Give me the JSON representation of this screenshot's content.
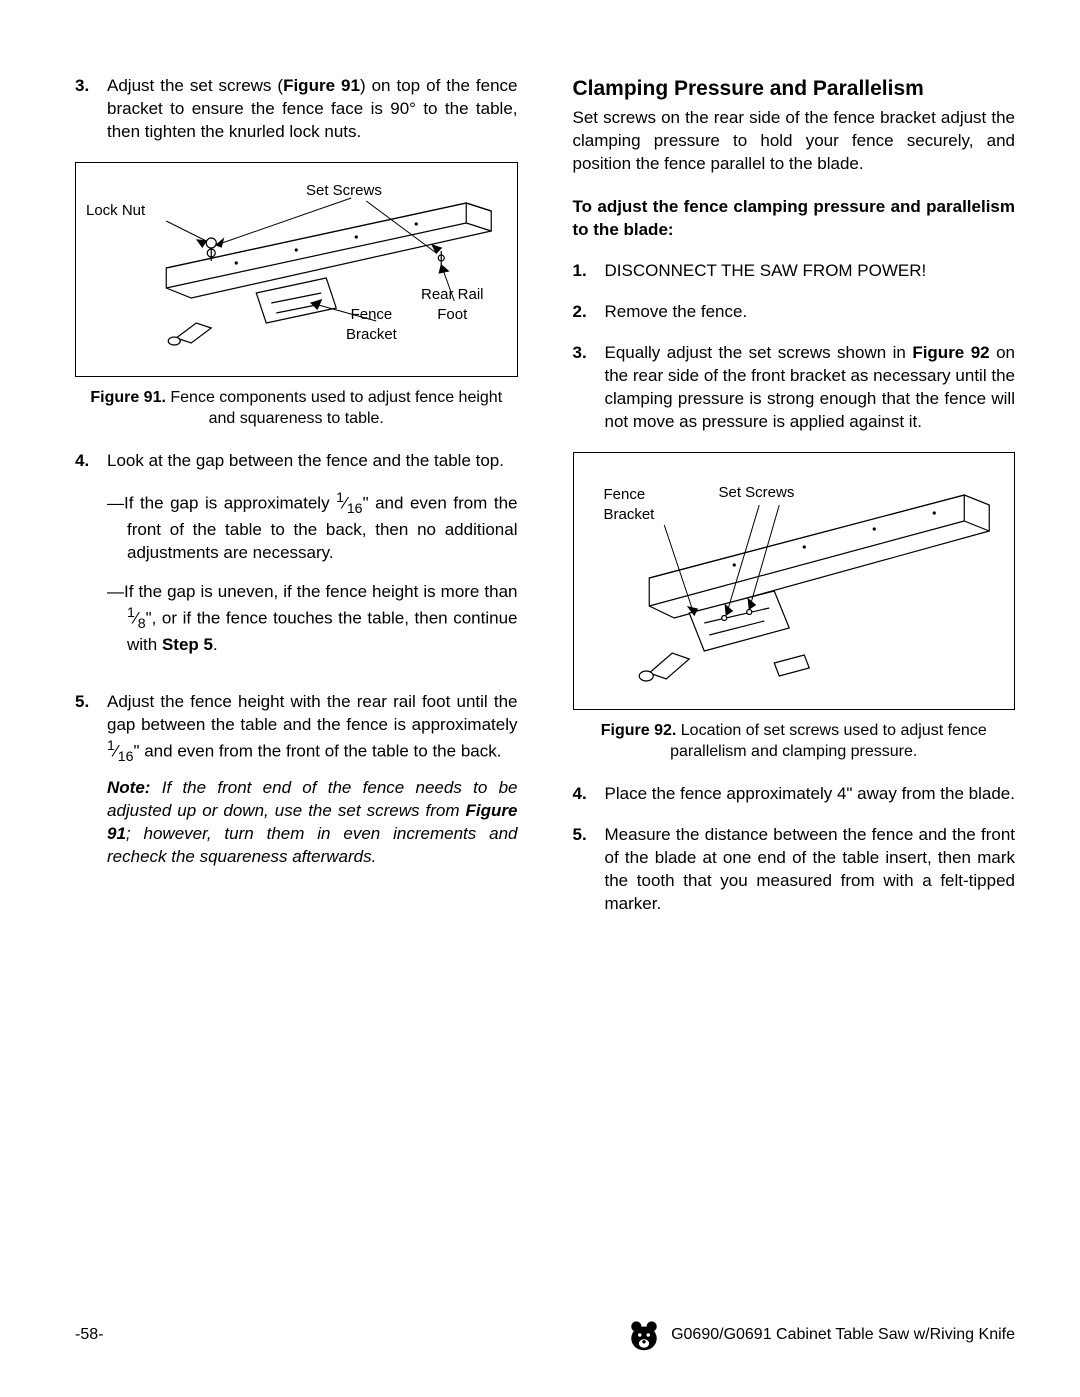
{
  "left": {
    "step3_num": "3.",
    "step3": "Adjust the set screws (<b>Figure 91</b>) on top of the fence bracket to ensure the fence face is 90° to the table, then tighten the knurled lock nuts.",
    "fig91_caption": "<b>Figure 91.</b> Fence components used to adjust fence height and squareness to table.",
    "fig91_labels": {
      "lockNut": "Lock Nut",
      "setScrews": "Set Screws",
      "fenceBracket": "Fence\nBracket",
      "rearRailFoot": "Rear Rail\nFoot"
    },
    "step4_num": "4.",
    "step4": "Look at the gap between the fence and the table top.",
    "step4a": "—If the gap is approximately <sup>1</sup>⁄<sub>16</sub>\" and even from the front of the table to the back, then no additional adjustments are necessary.",
    "step4b": "—If the gap is uneven, if the fence height is more than <sup>1</sup>⁄<sub>8</sub>\", or if the fence touches the table, then continue with <b>Step 5</b>.",
    "step5_num": "5.",
    "step5": "Adjust the fence height with the rear rail foot until the gap between the table and the fence is approximately <sup>1</sup>⁄<sub>16</sub>\" and even from the front of the table to the back.",
    "note": "<b>Note:</b> <i>If the front end of the fence needs to be adjusted up or down, use the set screws from <b>Figure 91</b>; however, turn them in even increments and recheck the squareness afterwards.</i>"
  },
  "right": {
    "title": "Clamping Pressure and Parallelism",
    "intro": "Set screws on the rear side of the fence bracket adjust the clamping pressure to hold your fence securely, and position the fence parallel to the blade.",
    "subhead": "To adjust the fence clamping pressure and parallelism to the blade:",
    "step1_num": "1.",
    "step1": "DISCONNECT THE SAW FROM POWER!",
    "step2_num": "2.",
    "step2": "Remove the fence.",
    "step3_num": "3.",
    "step3": "Equally adjust the set screws shown in <b>Figure 92</b> on the rear side of the front bracket as necessary until the clamping pressure is strong enough that the fence will not move as pressure is applied against it.",
    "fig92_caption": "<b>Figure 92.</b> Location of set screws used to adjust fence parallelism and clamping pressure.",
    "fig92_labels": {
      "fenceBracket": "Fence\nBracket",
      "setScrews": "Set Screws"
    },
    "step4_num": "4.",
    "step4": "Place the fence approximately 4\" away from the blade.",
    "step5_num": "5.",
    "step5": "Measure the distance between the fence and the front of the blade at one end of the table insert, then mark the tooth that you measured from with a felt-tipped marker."
  },
  "footer": {
    "page": "-58-",
    "title": "G0690/G0691 Cabinet Table Saw w/Riving Knife"
  },
  "colors": {
    "text": "#000000",
    "bg": "#ffffff",
    "stroke": "#000000"
  }
}
